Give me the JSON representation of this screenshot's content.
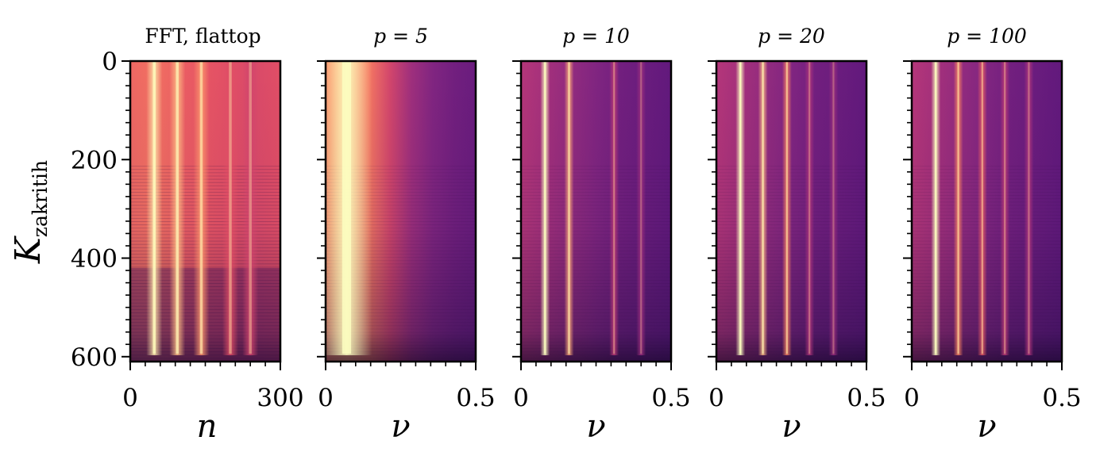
{
  "chart_data": [
    {
      "type": "heatmap",
      "title": "FFT, flattop",
      "title_style": "plain",
      "xlabel": "n",
      "ylabel": "K",
      "ylabel_subscript": "zakritih",
      "xlim": [
        0,
        300
      ],
      "ylim": [
        610,
        0
      ],
      "xticks": [
        0,
        300
      ],
      "xtick_labels": [
        "0",
        "300"
      ],
      "yticks": [
        0,
        200,
        400,
        600
      ],
      "ytick_labels": [
        "0",
        "200",
        "400",
        "600"
      ],
      "colormap": "magma",
      "ridges": [
        {
          "x": 48,
          "intensity": 0.95
        },
        {
          "x": 94,
          "intensity": 0.85
        },
        {
          "x": 142,
          "intensity": 0.75
        },
        {
          "x": 200,
          "intensity": 0.55
        },
        {
          "x": 240,
          "intensity": 0.5
        }
      ]
    },
    {
      "type": "heatmap",
      "title": "p = 5",
      "title_style": "math",
      "xlabel": "ν",
      "xlim": [
        0,
        0.5
      ],
      "ylim": [
        610,
        0
      ],
      "xticks": [
        0,
        0.5
      ],
      "xtick_labels": [
        "0",
        "0.5"
      ],
      "yticks": [
        0,
        200,
        400,
        600
      ],
      "colormap": "magma",
      "ridges": [
        {
          "x": 0.07,
          "intensity": 1.0
        }
      ]
    },
    {
      "type": "heatmap",
      "title": "p = 10",
      "title_style": "math",
      "xlabel": "ν",
      "xlim": [
        0,
        0.5
      ],
      "ylim": [
        610,
        0
      ],
      "xticks": [
        0,
        0.5
      ],
      "xtick_labels": [
        "0",
        "0.5"
      ],
      "yticks": [
        0,
        200,
        400,
        600
      ],
      "colormap": "magma",
      "ridges": [
        {
          "x": 0.08,
          "intensity": 1.0
        },
        {
          "x": 0.16,
          "intensity": 0.8
        },
        {
          "x": 0.31,
          "intensity": 0.45
        },
        {
          "x": 0.4,
          "intensity": 0.35
        }
      ]
    },
    {
      "type": "heatmap",
      "title": "p = 20",
      "title_style": "math",
      "xlabel": "ν",
      "xlim": [
        0,
        0.5
      ],
      "ylim": [
        610,
        0
      ],
      "xticks": [
        0,
        0.5
      ],
      "xtick_labels": [
        "0",
        "0.5"
      ],
      "yticks": [
        0,
        200,
        400,
        600
      ],
      "colormap": "magma",
      "ridges": [
        {
          "x": 0.08,
          "intensity": 1.0
        },
        {
          "x": 0.155,
          "intensity": 0.85
        },
        {
          "x": 0.235,
          "intensity": 0.7
        },
        {
          "x": 0.31,
          "intensity": 0.4
        },
        {
          "x": 0.39,
          "intensity": 0.35
        }
      ]
    },
    {
      "type": "heatmap",
      "title": "p = 100",
      "title_style": "math",
      "xlabel": "ν",
      "xlim": [
        0,
        0.5
      ],
      "ylim": [
        610,
        0
      ],
      "xticks": [
        0,
        0.5
      ],
      "xtick_labels": [
        "0",
        "0.5"
      ],
      "yticks": [
        0,
        200,
        400,
        600
      ],
      "colormap": "magma",
      "ridges": [
        {
          "x": 0.08,
          "intensity": 1.0
        },
        {
          "x": 0.155,
          "intensity": 0.7
        },
        {
          "x": 0.235,
          "intensity": 0.6
        },
        {
          "x": 0.31,
          "intensity": 0.45
        },
        {
          "x": 0.39,
          "intensity": 0.4
        }
      ]
    }
  ]
}
